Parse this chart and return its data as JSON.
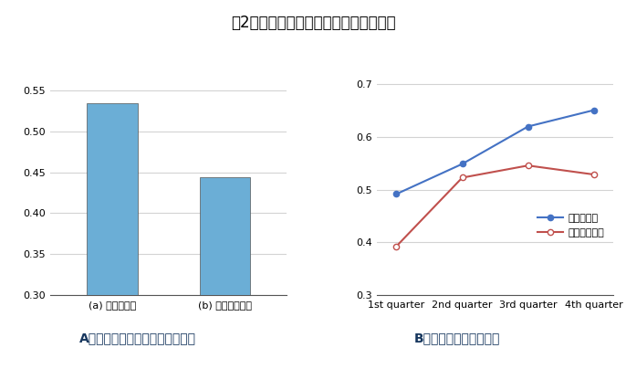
{
  "title": "図2　単位労働時間当たりの労働生産性",
  "title_fontsize": 12,
  "bar_categories": [
    "(a) 民主的設定",
    "(b) 非民主的設定"
  ],
  "bar_values": [
    0.534,
    0.444
  ],
  "bar_color": "#6baed6",
  "bar_ylim": [
    0.3,
    0.57
  ],
  "bar_yticks": [
    0.3,
    0.35,
    0.4,
    0.45,
    0.5,
    0.55
  ],
  "bar_subtitle": "A．　実現した労働生産性の平均",
  "line_quarters": [
    "1st quarter",
    "2nd quarter",
    "3rd quarter",
    "4th quarter"
  ],
  "line_democratic": [
    0.492,
    0.549,
    0.62,
    0.651
  ],
  "line_nondemocratic": [
    0.393,
    0.523,
    0.546,
    0.529
  ],
  "line_ylim": [
    0.3,
    0.72
  ],
  "line_yticks": [
    0.3,
    0.4,
    0.5,
    0.6,
    0.7
  ],
  "line_subtitle": "B．　労働生産性の推移",
  "legend_democratic": "民主的設定",
  "legend_nondemocratic": "非民主的設定",
  "blue_color": "#4472c4",
  "red_color": "#c0504d",
  "subtitle_color": "#17375e",
  "background_color": "#ffffff",
  "grid_color": "#d3d3d3",
  "subtitle_fontsize": 10,
  "tick_fontsize": 8,
  "legend_fontsize": 8
}
